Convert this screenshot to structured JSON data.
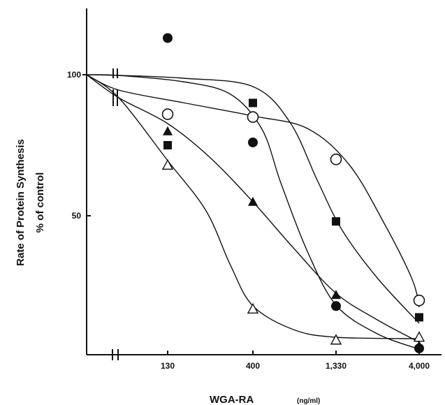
{
  "chart_data": {
    "type": "line",
    "title": "",
    "xlabel": "WGA-RA",
    "xunit": "(ng/ml)",
    "ylabel": "Rate of Protein Synthesis",
    "ylabel2": "% of control",
    "x_scale": "log",
    "x_break": true,
    "x_ticks": [
      "130",
      "400",
      "1,330",
      "4,000"
    ],
    "y_ticks": [
      "100",
      "50"
    ],
    "ylim": [
      0,
      125
    ],
    "colors": {
      "ink": "#111111"
    },
    "series": [
      {
        "marker": "filled-circle",
        "control": 100,
        "x": [
          130,
          400,
          1330,
          4000
        ],
        "y": [
          113,
          76,
          18,
          3
        ]
      },
      {
        "marker": "open-circle",
        "control": 100,
        "x": [
          130,
          400,
          1330,
          4000
        ],
        "y": [
          86,
          85,
          70,
          20
        ]
      },
      {
        "marker": "filled-square",
        "control": 100,
        "x": [
          130,
          400,
          1330,
          4000
        ],
        "y": [
          75,
          90,
          48,
          14
        ]
      },
      {
        "marker": "filled-triangle",
        "control": 100,
        "x": [
          130,
          400,
          1330,
          4000
        ],
        "y": [
          80,
          55,
          22,
          4
        ]
      },
      {
        "marker": "open-triangle",
        "control": 100,
        "x": [
          130,
          400,
          1330,
          4000
        ],
        "y": [
          68,
          17,
          6,
          7
        ]
      }
    ]
  }
}
